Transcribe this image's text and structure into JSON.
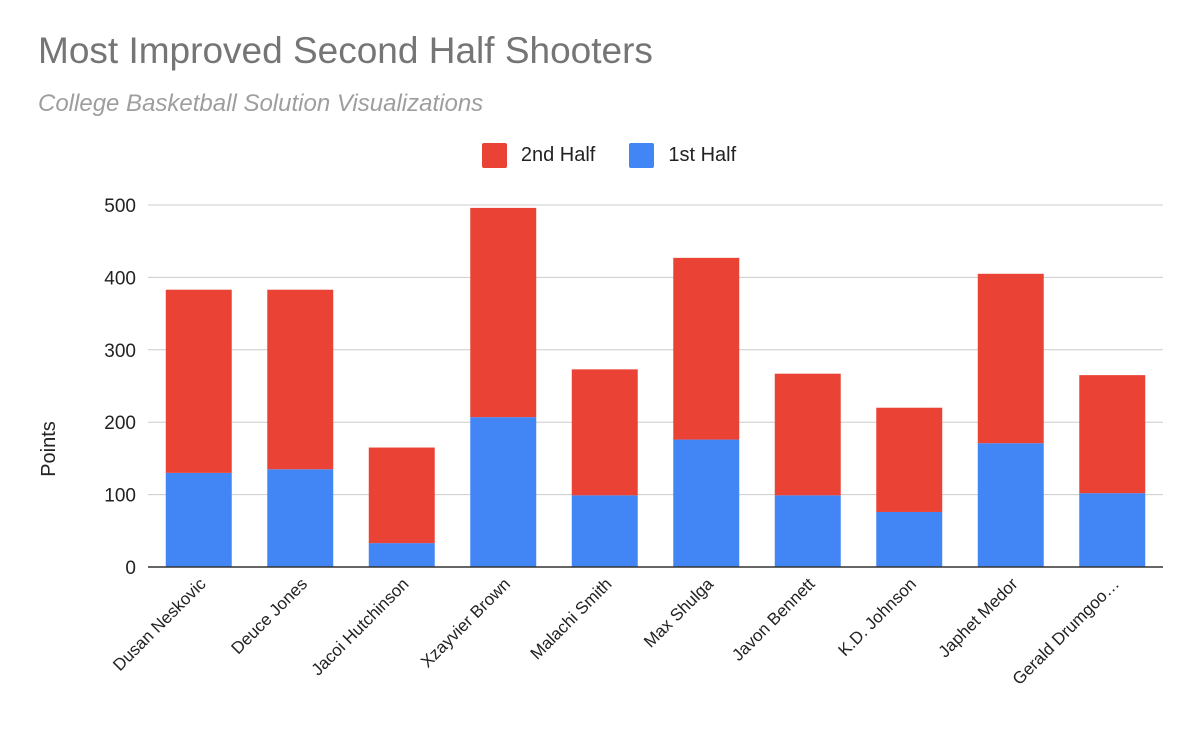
{
  "title": "Most Improved Second Half Shooters",
  "subtitle": "College Basketball Solution Visualizations",
  "colors": {
    "first_half": "#4285f4",
    "second_half": "#ea4335",
    "grid": "#cccccc",
    "axis": "#333333",
    "title": "#757575",
    "subtitle": "#9e9e9e"
  },
  "chart_data": {
    "type": "bar",
    "stacked": true,
    "title": "Most Improved Second Half Shooters",
    "subtitle": "College Basketball Solution Visualizations",
    "xlabel": "",
    "ylabel": "Points",
    "ylim": [
      0,
      500
    ],
    "yticks": [
      0,
      100,
      200,
      300,
      400,
      500
    ],
    "grid": true,
    "legend_position": "top",
    "legend": [
      "2nd Half",
      "1st Half"
    ],
    "categories": [
      "Dusan Neskovic",
      "Deuce Jones",
      "Jacoi Hutchinson",
      "Xzayvier Brown",
      "Malachi Smith",
      "Max Shulga",
      "Javon Bennett",
      "K.D. Johnson",
      "Japhet Medor",
      "Gerald Drumgoo…"
    ],
    "series": [
      {
        "name": "1st Half",
        "color": "#4285f4",
        "values": [
          130,
          135,
          33,
          207,
          99,
          176,
          99,
          76,
          171,
          102
        ]
      },
      {
        "name": "2nd Half",
        "color": "#ea4335",
        "values": [
          253,
          248,
          132,
          289,
          174,
          251,
          168,
          144,
          234,
          163
        ]
      }
    ]
  }
}
